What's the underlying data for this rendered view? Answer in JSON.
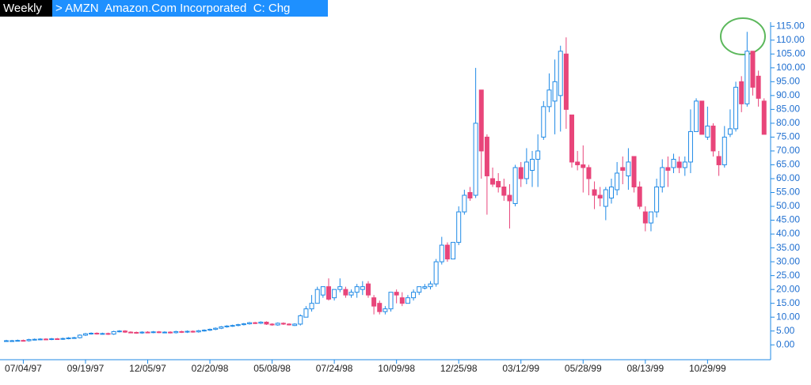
{
  "chart_data": {
    "type": "candlestick",
    "title": "Weekly",
    "subtitle": "> AMZN  Amazon.Com Incorporated  C: Chg",
    "up_color": "#1f8ae6",
    "down_color": "#e8457a",
    "categories": [
      null,
      null,
      null,
      "07/04/97",
      null,
      null,
      null,
      null,
      null,
      null,
      null,
      null,
      null,
      null,
      "09/19/97",
      null,
      null,
      null,
      null,
      null,
      null,
      null,
      null,
      null,
      null,
      "12/05/97",
      null,
      null,
      null,
      null,
      null,
      null,
      null,
      null,
      null,
      null,
      "02/20/98",
      null,
      null,
      null,
      null,
      null,
      null,
      null,
      null,
      null,
      null,
      "05/08/98",
      null,
      null,
      null,
      null,
      null,
      null,
      null,
      null,
      null,
      null,
      "07/24/98",
      null,
      null,
      null,
      null,
      null,
      null,
      null,
      null,
      null,
      null,
      "10/09/98",
      null,
      null,
      null,
      null,
      null,
      null,
      null,
      null,
      null,
      null,
      "12/25/98",
      null,
      null,
      null,
      null,
      null,
      null,
      null,
      null,
      null,
      null,
      "03/12/99",
      null,
      null,
      null,
      null,
      null,
      null,
      null,
      null,
      null,
      null,
      "05/28/99",
      null,
      null,
      null,
      null,
      null,
      null,
      null,
      null,
      null,
      null,
      "08/13/99",
      null,
      null,
      null,
      null,
      null,
      null,
      null,
      null,
      null,
      null,
      "10/29/99",
      null,
      null,
      null,
      null,
      null,
      null,
      null,
      null,
      null,
      null
    ],
    "open": [
      1.4,
      1.5,
      1.5,
      1.6,
      1.5,
      1.9,
      2.0,
      2.1,
      2.0,
      2.2,
      2.1,
      2.3,
      2.5,
      2.6,
      3.5,
      4.0,
      4.2,
      4.0,
      4.1,
      3.9,
      4.8,
      5.0,
      4.6,
      4.5,
      4.3,
      4.6,
      4.5,
      4.7,
      4.5,
      4.6,
      4.4,
      4.8,
      4.6,
      4.9,
      4.7,
      5.1,
      5.3,
      5.6,
      6.0,
      6.5,
      6.8,
      7.0,
      7.3,
      7.6,
      8.0,
      7.8,
      8.2,
      7.5,
      7.2,
      7.8,
      7.5,
      7.0,
      7.5,
      10,
      13,
      15,
      18,
      21,
      17,
      20,
      20,
      18,
      19,
      20,
      22,
      17,
      15,
      12,
      13,
      19,
      17,
      15,
      17,
      19,
      20.5,
      21,
      22,
      30,
      36,
      31,
      37,
      48,
      55,
      54,
      92,
      75,
      60,
      59,
      57,
      54,
      51,
      64,
      60,
      63,
      67,
      75,
      86,
      88,
      90,
      105,
      83,
      66,
      65,
      64,
      56,
      54,
      50,
      53,
      56,
      64,
      61,
      68,
      57,
      48,
      44,
      48,
      57,
      64,
      64,
      66,
      64,
      66,
      77,
      88,
      75,
      79,
      68,
      65,
      76,
      78,
      95,
      87,
      106,
      97,
      88
    ],
    "high": [
      1.8,
      1.8,
      1.9,
      1.9,
      2.2,
      2.3,
      2.4,
      2.4,
      2.5,
      2.5,
      2.6,
      2.8,
      2.9,
      3.8,
      4.3,
      4.5,
      4.5,
      4.4,
      4.4,
      5.1,
      5.3,
      5.3,
      4.9,
      4.8,
      4.9,
      4.9,
      5.0,
      5.0,
      4.9,
      4.9,
      5.1,
      5.1,
      5.2,
      5.2,
      5.4,
      5.6,
      5.9,
      6.3,
      6.8,
      7.1,
      7.3,
      7.6,
      7.9,
      8.3,
      8.3,
      8.5,
      8.5,
      7.8,
      8.1,
      8.1,
      7.8,
      7.8,
      11,
      14,
      18,
      21,
      21,
      24,
      20,
      24,
      21,
      20,
      22,
      23,
      23,
      18,
      16,
      14,
      19,
      20,
      19,
      18,
      20,
      21,
      22,
      23,
      31,
      39,
      37,
      37,
      50,
      56,
      57,
      100,
      92,
      76,
      64,
      62,
      60,
      58,
      65,
      66,
      71,
      70,
      76,
      88,
      98,
      103,
      108,
      111,
      83,
      70,
      72,
      65,
      59,
      57,
      57,
      60,
      66,
      68,
      71,
      68,
      59,
      50,
      48,
      60,
      67,
      68,
      69,
      68,
      68,
      85,
      89,
      88,
      86,
      80,
      70,
      79,
      85,
      95,
      97,
      113,
      106,
      99,
      89
    ],
    "low": [
      1.1,
      1.2,
      1.2,
      1.2,
      1.2,
      1.6,
      1.7,
      1.7,
      1.7,
      1.8,
      1.8,
      2.0,
      2.2,
      2.3,
      3.2,
      3.7,
      3.7,
      3.7,
      3.6,
      3.6,
      4.5,
      4.3,
      4.2,
      4.0,
      4.0,
      4.2,
      4.2,
      4.2,
      4.2,
      4.1,
      4.1,
      4.3,
      4.3,
      4.4,
      4.4,
      4.8,
      5.0,
      5.3,
      5.7,
      6.2,
      6.5,
      6.7,
      7.0,
      7.3,
      7.5,
      7.5,
      7.2,
      6.9,
      6.9,
      7.2,
      7.0,
      6.8,
      7,
      10,
      12,
      15,
      17,
      16,
      16,
      19,
      17,
      17,
      17,
      18,
      17,
      11,
      11,
      11,
      12,
      15,
      14,
      15,
      16,
      18,
      20,
      20,
      21,
      29,
      30,
      31,
      36,
      47,
      52,
      53,
      60,
      47,
      57,
      55,
      52,
      42,
      50,
      57,
      58,
      57,
      57,
      74,
      84,
      76,
      77,
      78,
      64,
      63,
      55,
      54,
      49,
      50,
      45,
      51,
      54,
      58,
      56,
      55,
      49,
      41,
      41,
      46,
      55,
      57,
      62,
      62,
      61,
      62,
      77,
      76,
      74,
      68,
      61,
      64,
      75,
      77,
      84,
      86,
      90,
      86,
      76
    ],
    "close": [
      1.5,
      1.5,
      1.6,
      1.5,
      1.9,
      2.0,
      2.1,
      2.0,
      2.2,
      2.1,
      2.3,
      2.5,
      2.6,
      3.5,
      4.0,
      4.2,
      4.0,
      4.1,
      3.9,
      4.8,
      5.0,
      4.6,
      4.5,
      4.3,
      4.6,
      4.5,
      4.7,
      4.5,
      4.6,
      4.4,
      4.8,
      4.6,
      4.9,
      4.7,
      5.1,
      5.3,
      5.6,
      6.0,
      6.5,
      6.8,
      7.0,
      7.3,
      7.6,
      8.0,
      7.8,
      8.2,
      7.5,
      7.2,
      7.8,
      7.5,
      7.3,
      7.5,
      10.5,
      13,
      15,
      20,
      21,
      16.5,
      20,
      21,
      18,
      19,
      21,
      21,
      18,
      14,
      12,
      13,
      19,
      18,
      15,
      17,
      19,
      21,
      21,
      22,
      30,
      36,
      31,
      37,
      48,
      54,
      53,
      80,
      70,
      61,
      58,
      57,
      54,
      52,
      64,
      60,
      66,
      67,
      70,
      86,
      92,
      95,
      106,
      85,
      66,
      65,
      64,
      60,
      54,
      53,
      56,
      57,
      62,
      63,
      66,
      57,
      50,
      44,
      48,
      57,
      64,
      63,
      67,
      64,
      66,
      77,
      88,
      76,
      79,
      70,
      65,
      75,
      78,
      93,
      87,
      106,
      93,
      89,
      76
    ],
    "ylim": [
      -4.5,
      116.5
    ],
    "yticks": [
      {
        "value": 0,
        "label": "0.00"
      },
      {
        "value": 5,
        "label": "5.00"
      },
      {
        "value": 10,
        "label": "10.00"
      },
      {
        "value": 15,
        "label": "15.00"
      },
      {
        "value": 20,
        "label": "20.00"
      },
      {
        "value": 25,
        "label": "25.00"
      },
      {
        "value": 30,
        "label": "30.00"
      },
      {
        "value": 35,
        "label": "35.00"
      },
      {
        "value": 40,
        "label": "40.00"
      },
      {
        "value": 45,
        "label": "45.00"
      },
      {
        "value": 50,
        "label": "50.00"
      },
      {
        "value": 55,
        "label": "55.00"
      },
      {
        "value": 60,
        "label": "60.00"
      },
      {
        "value": 65,
        "label": "65.00"
      },
      {
        "value": 70,
        "label": "70.00"
      },
      {
        "value": 75,
        "label": "75.00"
      },
      {
        "value": 80,
        "label": "80.00"
      },
      {
        "value": 85,
        "label": "85.00"
      },
      {
        "value": 90,
        "label": "90.00"
      },
      {
        "value": 95,
        "label": "95.00"
      },
      {
        "value": 100,
        "label": "100.00"
      },
      {
        "value": 105,
        "label": "105.00"
      },
      {
        "value": 110,
        "label": "110.00"
      },
      {
        "value": 115,
        "label": "115.00"
      }
    ]
  }
}
